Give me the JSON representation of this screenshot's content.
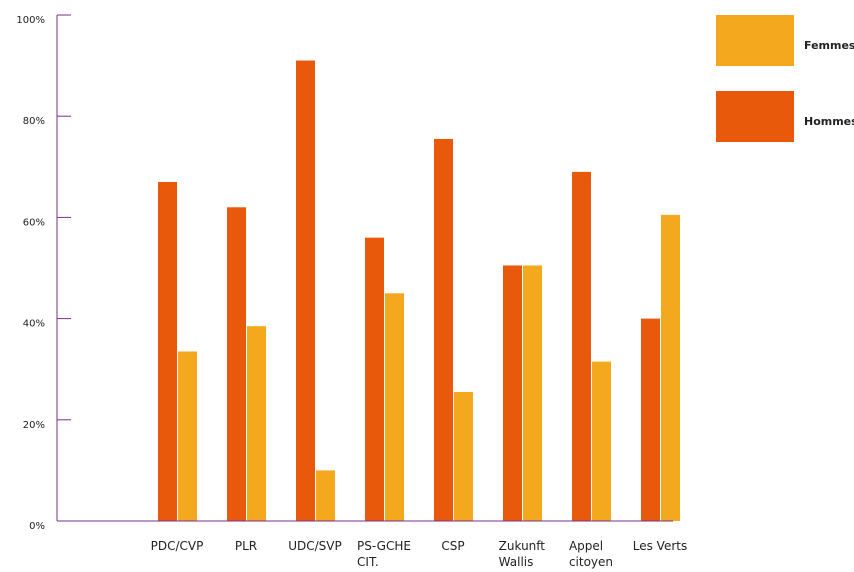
{
  "chart_data": {
    "type": "bar",
    "categories": [
      [
        "PDC/CVP"
      ],
      [
        "PLR"
      ],
      [
        "UDC/SVP"
      ],
      [
        "PS-GCHE",
        "CIT."
      ],
      [
        "CSP"
      ],
      [
        "Zukunft",
        "Wallis"
      ],
      [
        "Appel",
        "citoyen"
      ],
      [
        "Les Verts"
      ]
    ],
    "series": [
      {
        "name": "Hommes",
        "color": "#E8590C",
        "values": [
          67,
          62,
          91,
          56,
          75.5,
          50.5,
          69,
          40
        ]
      },
      {
        "name": "Femmes",
        "color": "#F4A81D",
        "values": [
          33.5,
          38.5,
          10,
          45,
          25.5,
          50.5,
          31.5,
          60.5
        ]
      }
    ],
    "ylim": [
      0,
      100
    ],
    "yticks": [
      "0%",
      "20%",
      "40%",
      "60%",
      "80%",
      "100%"
    ],
    "legend": {
      "position": "top-right",
      "order": [
        "Femmes",
        "Hommes"
      ]
    },
    "axis_color": "#7B2D8E",
    "grid": false
  }
}
